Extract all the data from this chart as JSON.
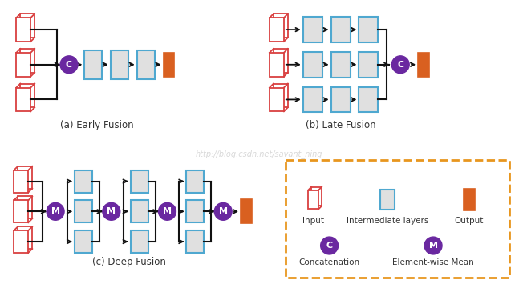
{
  "fig_width": 6.47,
  "fig_height": 3.6,
  "dpi": 100,
  "bg_color": "#ffffff",
  "input_color": "#d94040",
  "inter_fill": "#e0e0e0",
  "inter_edge": "#4fa8d0",
  "output_fill": "#d96020",
  "output_edge": "#d96020",
  "circle_fill": "#6a28a0",
  "circle_text": "#ffffff",
  "arrow_color": "#111111",
  "legend_border": "#e8961e",
  "watermark": "http://blog.csdn.net/savant_ning",
  "watermark_color": "#c8c8c8",
  "label_a": "(a) Early Fusion",
  "label_b": "(b) Late Fusion",
  "label_c": "(c) Deep Fusion",
  "legend_input": "Input",
  "legend_inter": "Intermediate layers",
  "legend_output": "Output",
  "legend_concat": "Concatenation",
  "legend_mean": "Element-wise Mean"
}
